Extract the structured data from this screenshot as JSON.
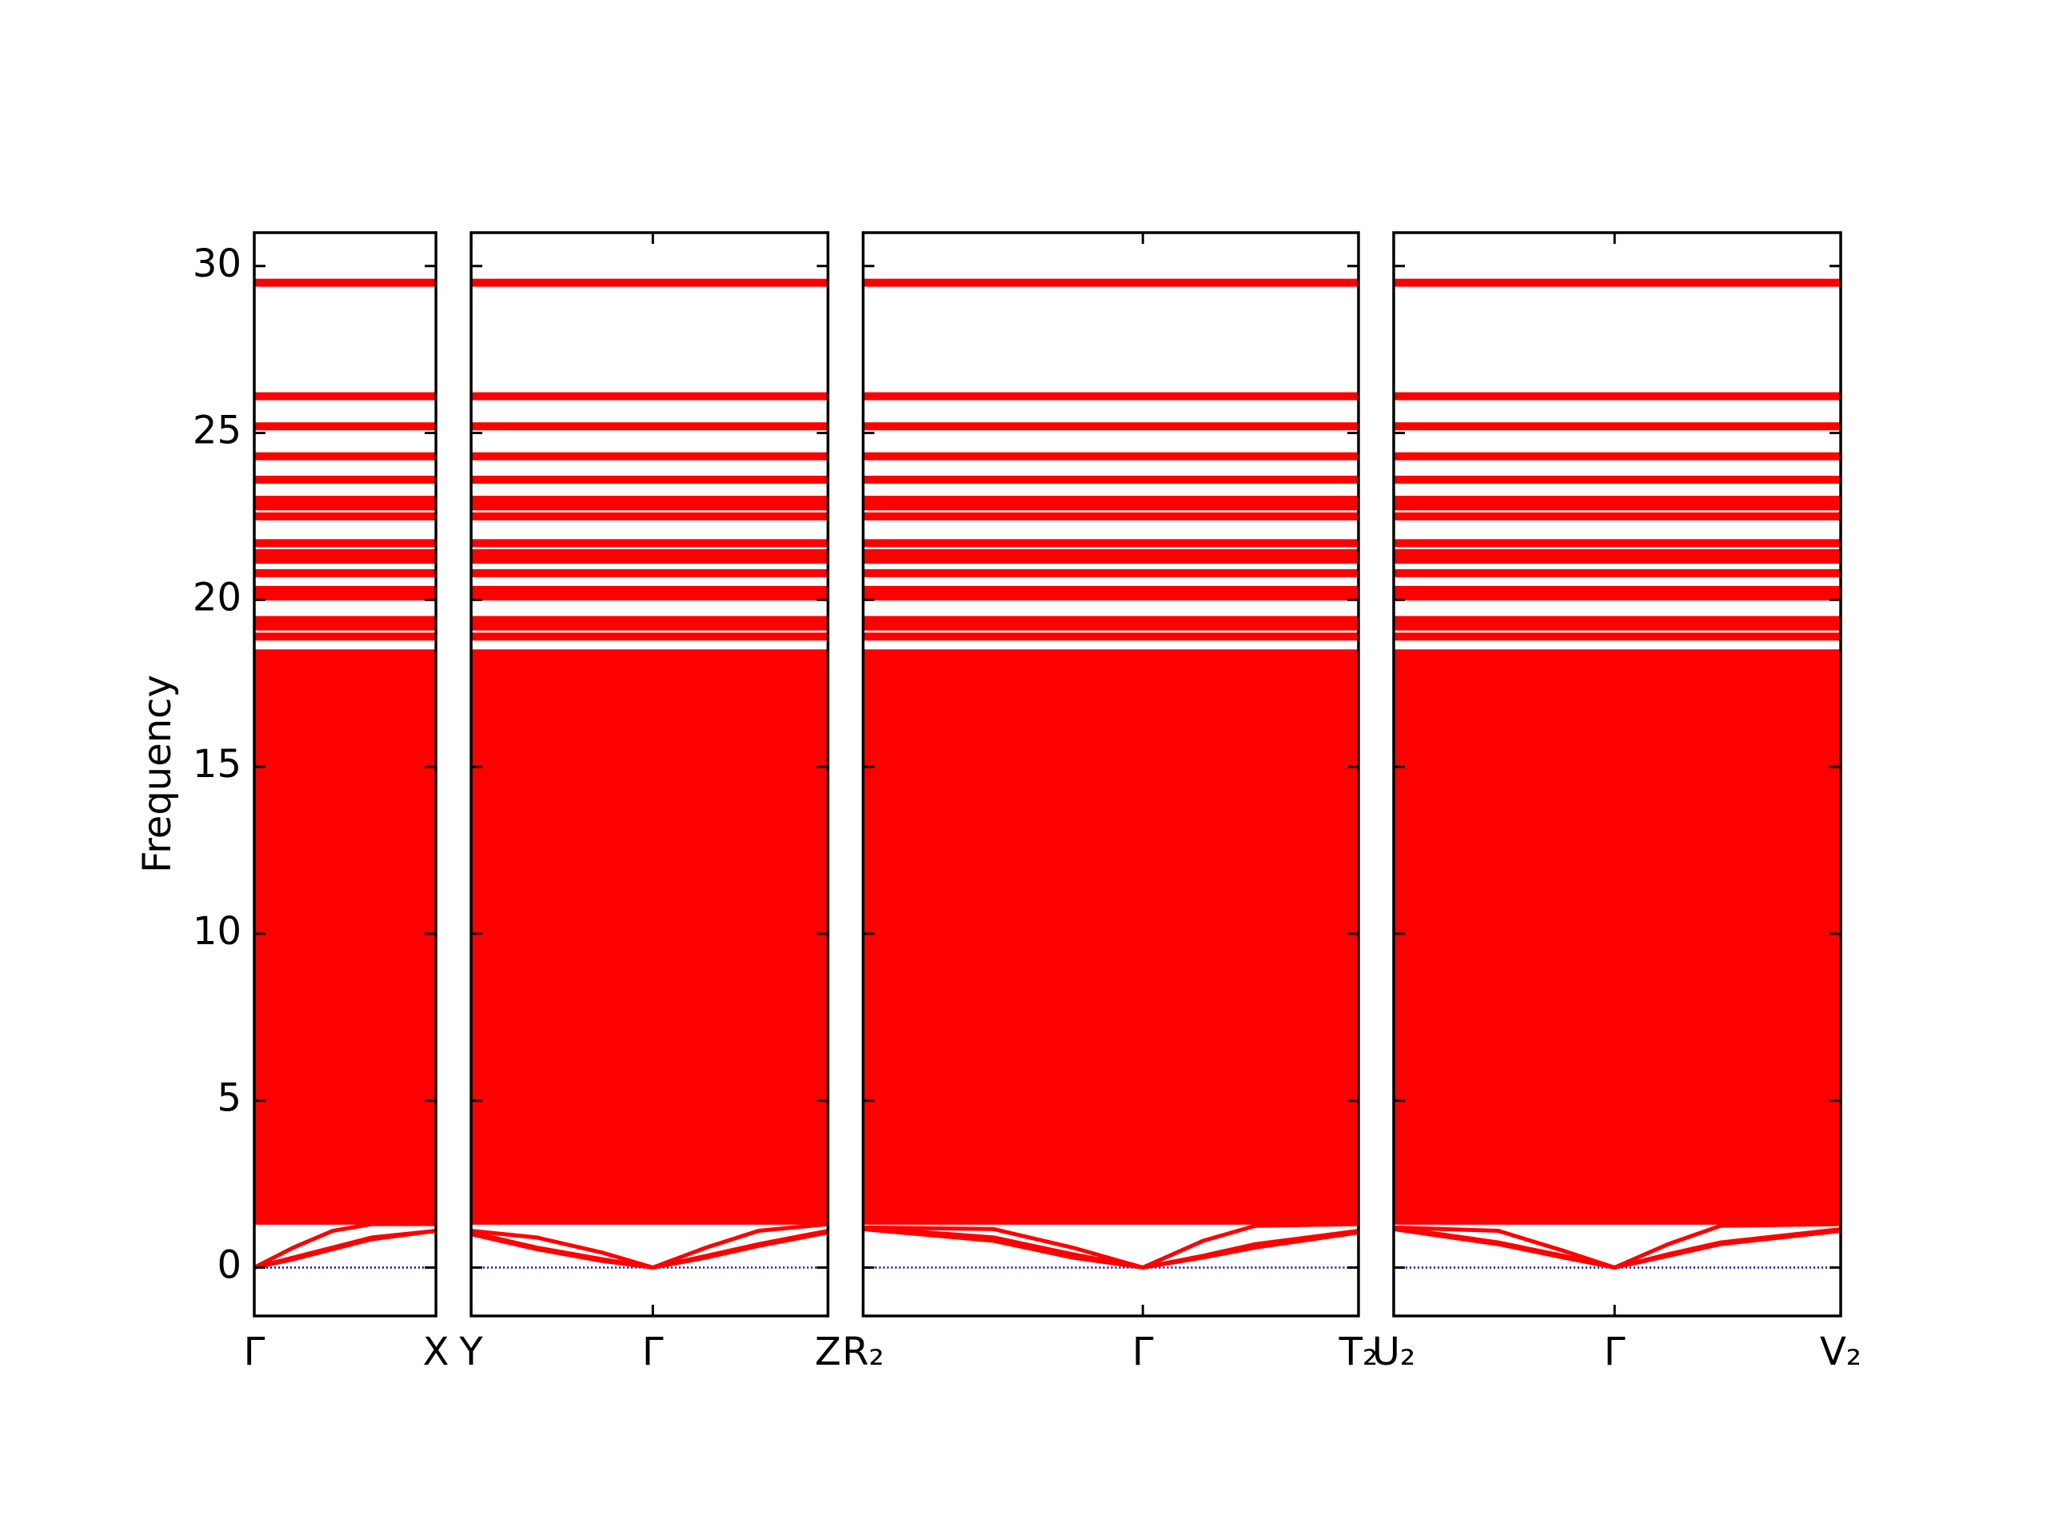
{
  "chart_data": {
    "type": "band",
    "ylabel": "Frequency",
    "color": "#ff0000",
    "zero_line_color": "#0000cc",
    "ylim": [
      -1.45,
      31
    ],
    "yticks": [
      0,
      5,
      10,
      15,
      20,
      25,
      30
    ],
    "levels": [
      1.4,
      1.6,
      1.8,
      2,
      2.2,
      2.4,
      2.6,
      2.8,
      3,
      3.2,
      3.4,
      3.6,
      3.8,
      4,
      4.2,
      4.4,
      4.6,
      4.8,
      5,
      5.2,
      5.4,
      5.6,
      5.8,
      6,
      6.2,
      6.4,
      6.6,
      6.8,
      7,
      7.2,
      7.4,
      7.6,
      7.8,
      8,
      8.2,
      8.4,
      8.6,
      8.8,
      9,
      9.2,
      9.4,
      9.6,
      9.8,
      10,
      10.2,
      10.4,
      10.6,
      10.8,
      11,
      11.2,
      11.4,
      11.6,
      11.8,
      12,
      12.2,
      12.4,
      12.6,
      12.8,
      13,
      13.2,
      13.4,
      13.6,
      13.8,
      14,
      14.2,
      14.4,
      14.6,
      14.8,
      15,
      15.2,
      15.4,
      15.6,
      15.8,
      16,
      16.2,
      16.4,
      16.6,
      16.8,
      17,
      17.2,
      17.4,
      17.6,
      17.8,
      18,
      18.2,
      18.4,
      18.9,
      19.2,
      19.4,
      20.1,
      20.3,
      20.8,
      21.2,
      21.4,
      21.7,
      22.5,
      22.8,
      23,
      23.6,
      24.3,
      25.2,
      26.1,
      29.5
    ],
    "panels": [
      {
        "xlim": [
          0,
          0.139
        ],
        "xticks": [
          {
            "value": 0,
            "label": "Γ"
          },
          {
            "value": 0.139,
            "label": "X"
          }
        ],
        "series": [
          {
            "x": [
              0,
              0.03,
              0.06,
              0.09,
              0.139
            ],
            "values": [
              0,
              0.6,
              1.1,
              1.3,
              1.3
            ]
          },
          {
            "x": [
              0,
              0.03,
              0.06,
              0.09,
              0.139
            ],
            "values": [
              0,
              0.3,
              0.6,
              0.9,
              1.1
            ]
          },
          {
            "x": [
              0,
              0.03,
              0.06,
              0.09,
              0.139
            ],
            "values": [
              0,
              0.25,
              0.55,
              0.85,
              1.1
            ]
          }
        ]
      },
      {
        "xlim": [
          0,
          0.273
        ],
        "xticks": [
          {
            "value": 0,
            "label": "Y"
          },
          {
            "value": 0.139,
            "label": "Γ"
          },
          {
            "value": 0.273,
            "label": "Z"
          }
        ],
        "series": [
          {
            "x": [
              0,
              0.05,
              0.1,
              0.139,
              0.18,
              0.22,
              0.273
            ],
            "values": [
              1.1,
              0.9,
              0.45,
              0,
              0.6,
              1.1,
              1.3
            ]
          },
          {
            "x": [
              0,
              0.05,
              0.1,
              0.139,
              0.18,
              0.22,
              0.273
            ],
            "values": [
              1.05,
              0.6,
              0.25,
              0,
              0.35,
              0.7,
              1.1
            ]
          },
          {
            "x": [
              0,
              0.05,
              0.1,
              0.139,
              0.18,
              0.22,
              0.273
            ],
            "values": [
              1,
              0.55,
              0.2,
              0,
              0.3,
              0.65,
              1.05
            ]
          }
        ]
      },
      {
        "xlim": [
          0,
          0.379
        ],
        "xticks": [
          {
            "value": 0,
            "label": "R₂"
          },
          {
            "value": 0.214,
            "label": "Γ"
          },
          {
            "value": 0.379,
            "label": "T₂"
          }
        ],
        "series": [
          {
            "x": [
              0,
              0.1,
              0.16,
              0.214,
              0.26,
              0.3,
              0.379
            ],
            "values": [
              1.2,
              1.15,
              0.6,
              0,
              0.8,
              1.25,
              1.3
            ]
          },
          {
            "x": [
              0,
              0.1,
              0.16,
              0.214,
              0.26,
              0.3,
              0.379
            ],
            "values": [
              1.2,
              0.9,
              0.4,
              0,
              0.35,
              0.7,
              1.1
            ]
          },
          {
            "x": [
              0,
              0.1,
              0.16,
              0.214,
              0.26,
              0.3,
              0.379
            ],
            "values": [
              1.15,
              0.8,
              0.3,
              0,
              0.3,
              0.6,
              1.05
            ]
          }
        ]
      },
      {
        "xlim": [
          0,
          0.342
        ],
        "xticks": [
          {
            "value": 0,
            "label": "U₂"
          },
          {
            "value": 0.169,
            "label": "Γ"
          },
          {
            "value": 0.342,
            "label": "V₂"
          }
        ],
        "series": [
          {
            "x": [
              0,
              0.08,
              0.13,
              0.169,
              0.21,
              0.25,
              0.342
            ],
            "values": [
              1.2,
              1.1,
              0.5,
              0,
              0.7,
              1.25,
              1.3
            ]
          },
          {
            "x": [
              0,
              0.08,
              0.13,
              0.169,
              0.21,
              0.25,
              0.342
            ],
            "values": [
              1.2,
              0.75,
              0.35,
              0,
              0.4,
              0.75,
              1.15
            ]
          },
          {
            "x": [
              0,
              0.08,
              0.13,
              0.169,
              0.21,
              0.25,
              0.342
            ],
            "values": [
              1.15,
              0.7,
              0.3,
              0,
              0.35,
              0.7,
              1.1
            ]
          }
        ]
      }
    ]
  }
}
